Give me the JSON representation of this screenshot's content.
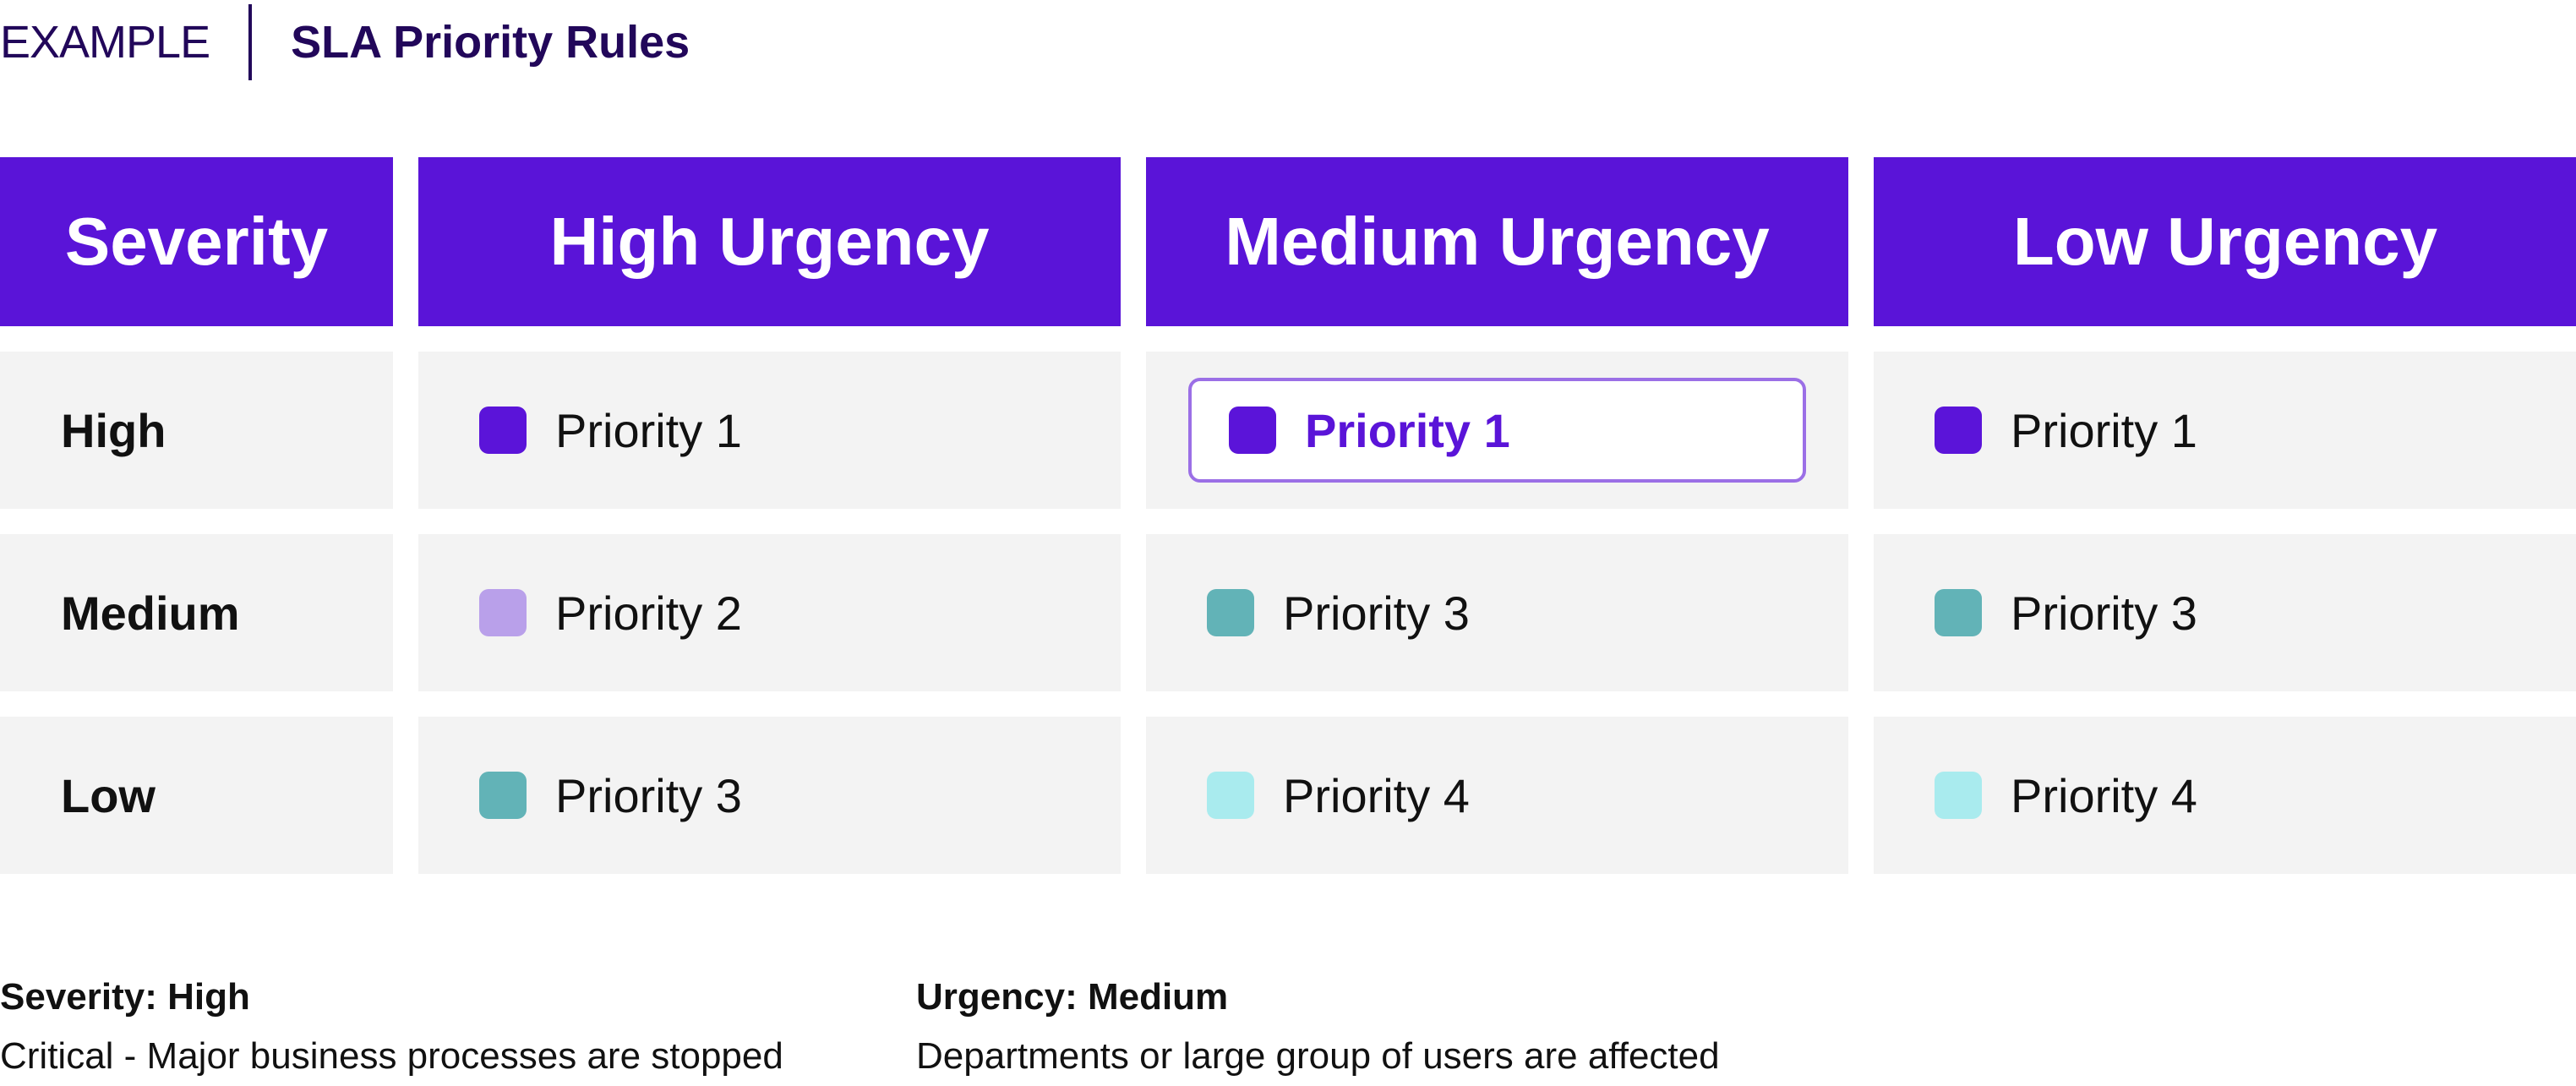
{
  "header": {
    "label": "EXAMPLE",
    "title": "SLA Priority Rules"
  },
  "columns": [
    "Severity",
    "High Urgency",
    "Medium Urgency",
    "Low Urgency"
  ],
  "colors": {
    "accent": "#5a14d8",
    "priority_1": "#5b14d9",
    "priority_2": "#b9a0ea",
    "priority_3": "#62b3b7",
    "priority_4": "#a9ebee",
    "cell_bg": "#f3f3f3",
    "highlight_border": "#9b6fe6"
  },
  "rows": [
    {
      "severity": "High",
      "cells": [
        {
          "label": "Priority 1",
          "level": 1
        },
        {
          "label": "Priority 1",
          "level": 1,
          "highlighted": true
        },
        {
          "label": "Priority 1",
          "level": 1
        }
      ]
    },
    {
      "severity": "Medium",
      "cells": [
        {
          "label": "Priority 2",
          "level": 2
        },
        {
          "label": "Priority 3",
          "level": 3
        },
        {
          "label": "Priority 3",
          "level": 3
        }
      ]
    },
    {
      "severity": "Low",
      "cells": [
        {
          "label": "Priority 3",
          "level": 3
        },
        {
          "label": "Priority 4",
          "level": 4
        },
        {
          "label": "Priority 4",
          "level": 4
        }
      ]
    }
  ],
  "footer": [
    {
      "heading": "Severity: High",
      "text": "Critical - Major business processes are stopped"
    },
    {
      "heading": "Urgency: Medium",
      "text": "Departments or large group of users are affected"
    }
  ]
}
